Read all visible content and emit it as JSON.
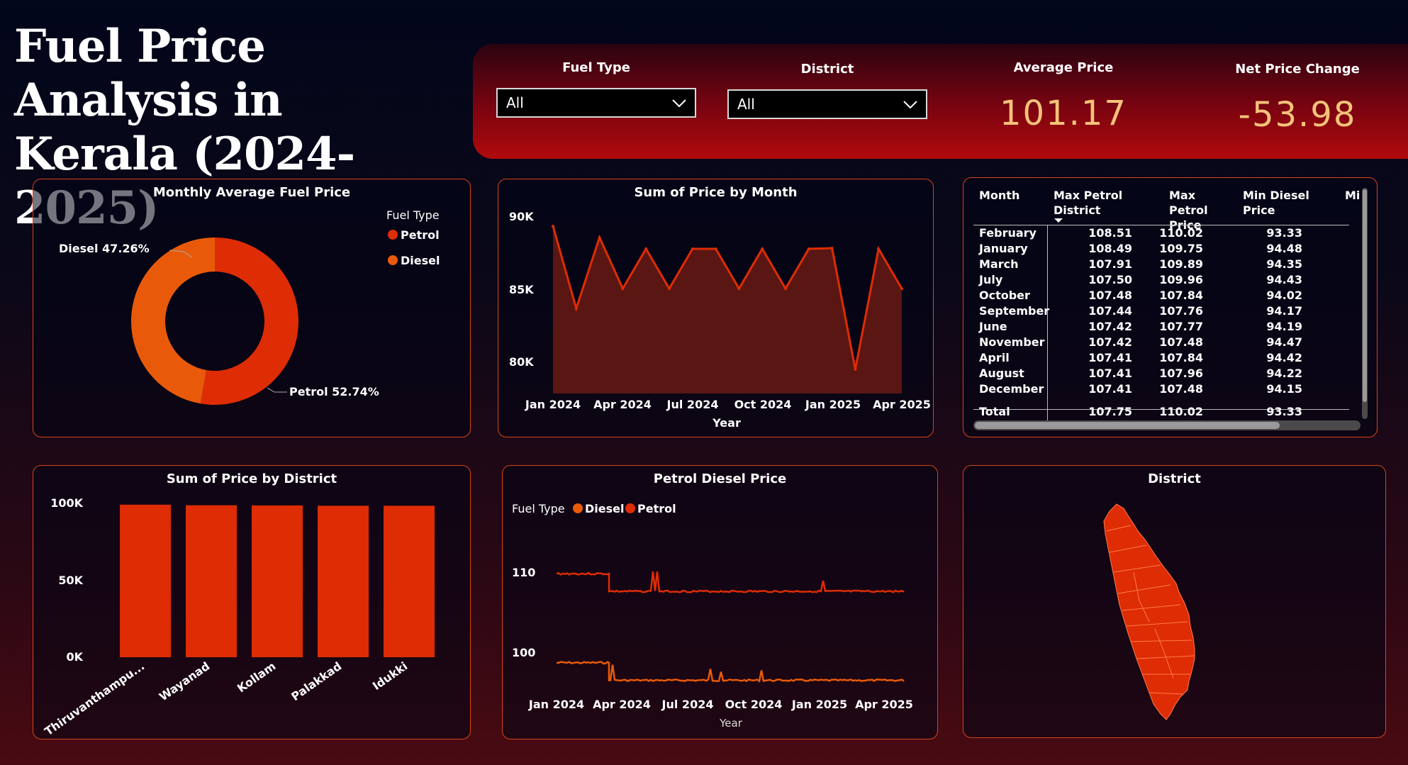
{
  "title": "Fuel Price Analysis in\nKerala (2024-2025)",
  "filters": {
    "fuel_type": {
      "label": "Fuel Type",
      "value": "All"
    },
    "district": {
      "label": "District",
      "value": "All"
    }
  },
  "kpis": {
    "average_price": {
      "label": "Average Price",
      "value": "101.17"
    },
    "net_price_change": {
      "label": "Net Price Change",
      "value": "-53.98"
    }
  },
  "donut": {
    "title": "Monthly Average Fuel Price",
    "legend_title": "Fuel Type",
    "legend": [
      "Petrol",
      "Diesel"
    ],
    "label_diesel": "Diesel 47.26%",
    "label_petrol": "Petrol 52.74%"
  },
  "area": {
    "title": "Sum of Price by Month",
    "xlabel": "Year",
    "yticks": [
      "90K",
      "85K",
      "80K"
    ],
    "xticks": [
      "Jan 2024",
      "Apr 2024",
      "Jul 2024",
      "Oct 2024",
      "Jan 2025",
      "Apr 2025"
    ]
  },
  "table": {
    "headers": [
      "Month",
      "Max Petrol District",
      "Max Petrol Price",
      "Min Diesel Price",
      "Mi"
    ],
    "rows": [
      [
        "February",
        "108.51",
        "110.02",
        "93.33"
      ],
      [
        "January",
        "108.49",
        "109.75",
        "94.48"
      ],
      [
        "March",
        "107.91",
        "109.89",
        "94.35"
      ],
      [
        "July",
        "107.50",
        "109.96",
        "94.43"
      ],
      [
        "October",
        "107.48",
        "107.84",
        "94.02"
      ],
      [
        "September",
        "107.44",
        "107.76",
        "94.17"
      ],
      [
        "June",
        "107.42",
        "107.77",
        "94.19"
      ],
      [
        "November",
        "107.42",
        "107.48",
        "94.47"
      ],
      [
        "April",
        "107.41",
        "107.84",
        "94.42"
      ],
      [
        "August",
        "107.41",
        "107.96",
        "94.22"
      ],
      [
        "December",
        "107.41",
        "107.48",
        "94.15"
      ]
    ],
    "total": [
      "Total",
      "107.75",
      "110.02",
      "93.33"
    ]
  },
  "bar": {
    "title": "Sum of Price by District",
    "yticks": [
      "100K",
      "50K",
      "0K"
    ],
    "categories": [
      "Thiruvanthampu...",
      "Wayanad",
      "Kollam",
      "Palakkad",
      "Idukki"
    ]
  },
  "lines": {
    "title": "Petrol Diesel Price",
    "legend_title": "Fuel Type",
    "legend": [
      "Diesel",
      "Petrol"
    ],
    "yticks": [
      "110",
      "100"
    ],
    "xticks": [
      "Jan 2024",
      "Apr 2024",
      "Jul 2024",
      "Oct 2024",
      "Jan 2025",
      "Apr 2025"
    ],
    "xlabel": "Year"
  },
  "map": {
    "title": "District"
  },
  "colors": {
    "petrol": "#de2c04",
    "diesel": "#e85a0a",
    "border": "#d8441a",
    "kpi": "#f4c27a"
  },
  "chart_data": [
    {
      "type": "pie",
      "title": "Monthly Average Fuel Price",
      "categories": [
        "Petrol",
        "Diesel"
      ],
      "values": [
        52.74,
        47.26
      ]
    },
    {
      "type": "area",
      "title": "Sum of Price by Month",
      "xlabel": "Year",
      "x": [
        "Jan 2024",
        "Feb 2024",
        "Mar 2024",
        "Apr 2024",
        "May 2024",
        "Jun 2024",
        "Jul 2024",
        "Aug 2024",
        "Sep 2024",
        "Oct 2024",
        "Nov 2024",
        "Dec 2024",
        "Jan 2025",
        "Feb 2025",
        "Mar 2025",
        "Apr 2025"
      ],
      "values": [
        89300,
        83500,
        88500,
        84900,
        87700,
        84900,
        87700,
        87700,
        84900,
        87700,
        84900,
        87700,
        87750,
        79200,
        87700,
        84900
      ],
      "ylim": [
        77500,
        91000
      ]
    },
    {
      "type": "bar",
      "title": "Sum of Price by District",
      "categories": [
        "Thiruvanthampu...",
        "Wayanad",
        "Kollam",
        "Palakkad",
        "Idukki"
      ],
      "values": [
        100100,
        99700,
        99600,
        99400,
        99400
      ],
      "ylim": [
        0,
        100000
      ]
    },
    {
      "type": "line",
      "title": "Petrol Diesel Price",
      "xlabel": "Year",
      "series": [
        {
          "name": "Petrol",
          "x": [
            "Jan 2024",
            "Mar 2024",
            "Mar 2024",
            "Apr 2025"
          ],
          "values": [
            109.8,
            109.8,
            107.6,
            107.6
          ]
        },
        {
          "name": "Diesel",
          "x": [
            "Jan 2024",
            "Mar 2024",
            "Mar 2024",
            "Apr 2025"
          ],
          "values": [
            98.7,
            98.7,
            96.5,
            96.5
          ]
        }
      ]
    }
  ]
}
